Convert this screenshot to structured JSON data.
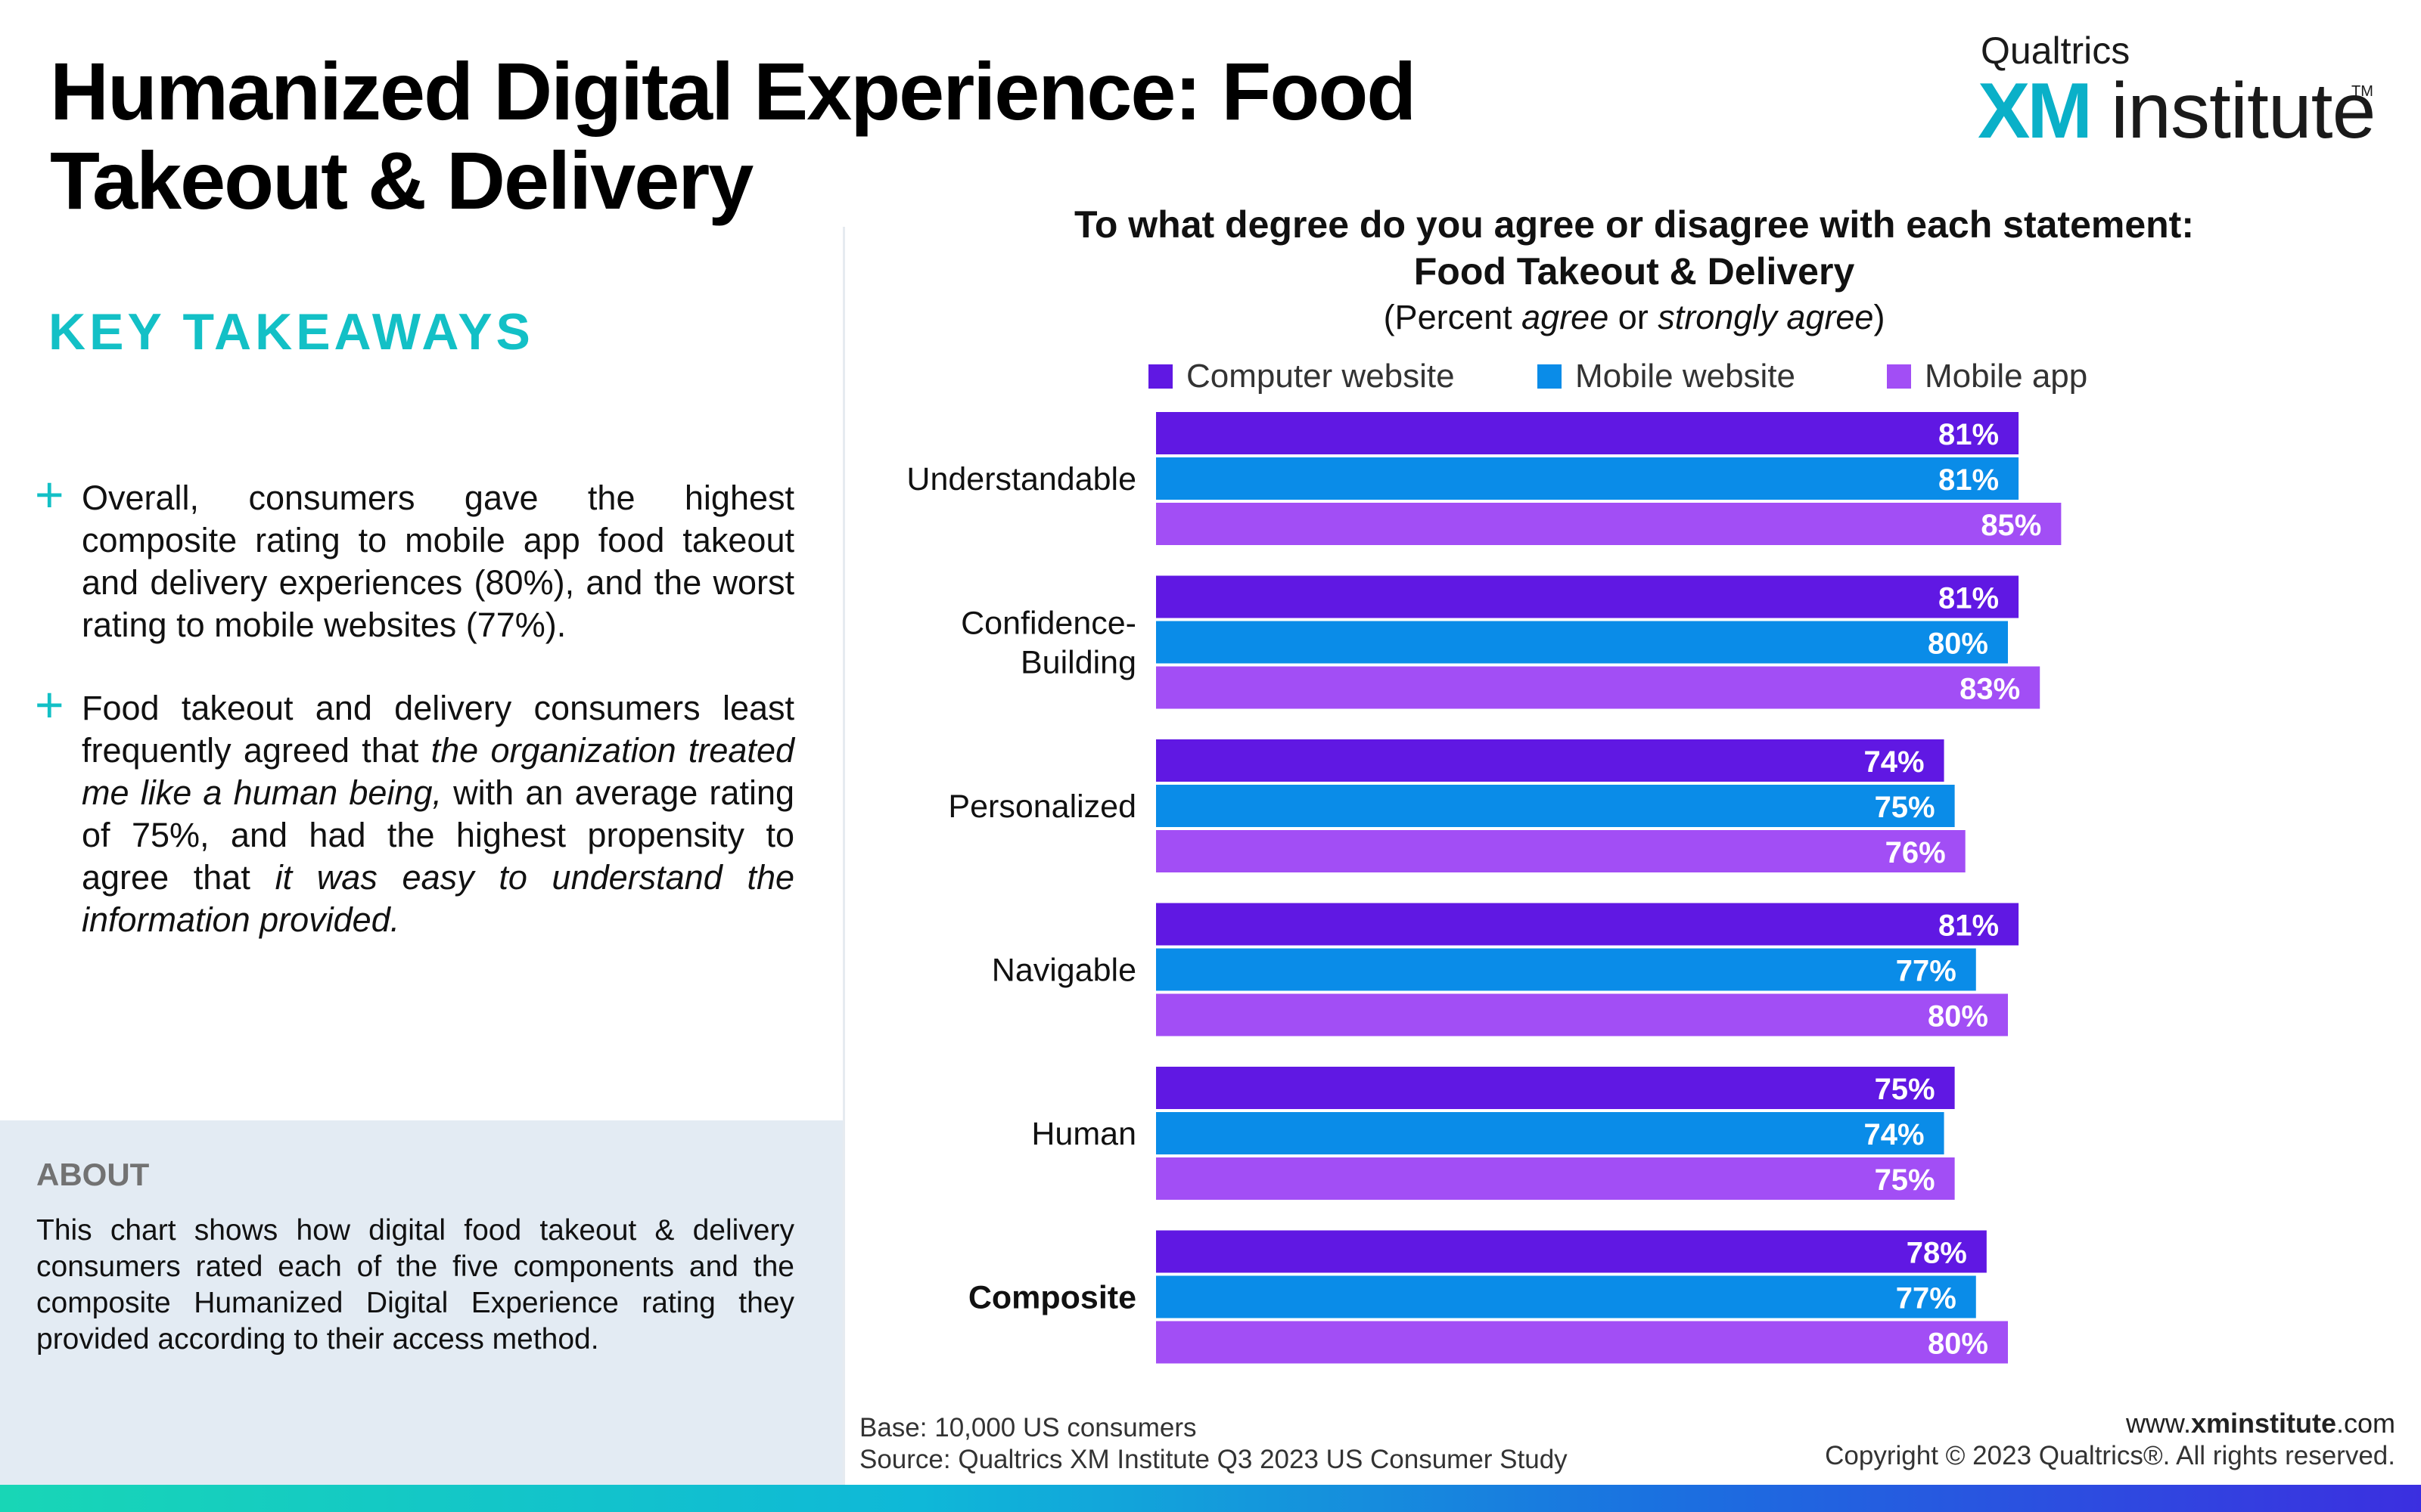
{
  "header": {
    "title": "Humanized Digital Experience: Food Takeout & Delivery",
    "logo_top": "Qualtrics",
    "logo_xm": "XM",
    "logo_institute": "institute",
    "logo_tm": "TM"
  },
  "takeaways": {
    "heading": "KEY TAKEAWAYS",
    "bullet_glyph": "+",
    "bullet1": "Overall, consumers gave the highest composite rating to mobile app food takeout and delivery experiences (80%), and the worst rating to mobile websites (77%).",
    "bullet2": {
      "p1": "Food takeout and delivery consumers least frequently agreed that ",
      "i1": "the organization treated me like a human being,",
      "p2": " with an average rating of 75%, and had the highest propensity to agree that ",
      "i2": "it was easy to understand the information provided."
    }
  },
  "about": {
    "heading": "ABOUT",
    "text": "This chart shows how digital food takeout & delivery consumers rated each of the five components and the composite Humanized Digital Experience rating they provided according to their access method."
  },
  "chart_header": {
    "q1": "To what degree do you agree or disagree with each statement:",
    "q2": "Food Takeout & Delivery",
    "q3_a": "(Percent ",
    "q3_i1": "agree",
    "q3_b": " or ",
    "q3_i2": "strongly agree",
    "q3_c": ")"
  },
  "chart_data": {
    "type": "bar",
    "orientation": "horizontal",
    "categories": [
      "Understandable",
      "Confidence-Building",
      "Personalized",
      "Navigable",
      "Human",
      "Composite"
    ],
    "category_lines": [
      [
        "Understandable"
      ],
      [
        "Confidence-",
        "Building"
      ],
      [
        "Personalized"
      ],
      [
        "Navigable"
      ],
      [
        "Human"
      ],
      [
        "Composite"
      ]
    ],
    "bold_category": "Composite",
    "series": [
      {
        "name": "Computer website",
        "color": "#6018e3",
        "values": [
          81,
          81,
          74,
          81,
          75,
          78
        ]
      },
      {
        "name": "Mobile website",
        "color": "#0a8ce8",
        "values": [
          81,
          80,
          75,
          77,
          74,
          77
        ]
      },
      {
        "name": "Mobile app",
        "color": "#a24ef5",
        "values": [
          85,
          83,
          76,
          80,
          75,
          80
        ]
      }
    ],
    "value_suffix": "%",
    "legend_position": "top",
    "grid": false
  },
  "footer": {
    "base": "Base: 10,000 US consumers",
    "source": "Source: Qualtrics XM Institute Q3 2023 US Consumer Study",
    "site_pre": "www.",
    "site_bold": "xminstitute",
    "site_post": ".com",
    "copyright": "Copyright © 2023 Qualtrics®. All rights reserved."
  }
}
